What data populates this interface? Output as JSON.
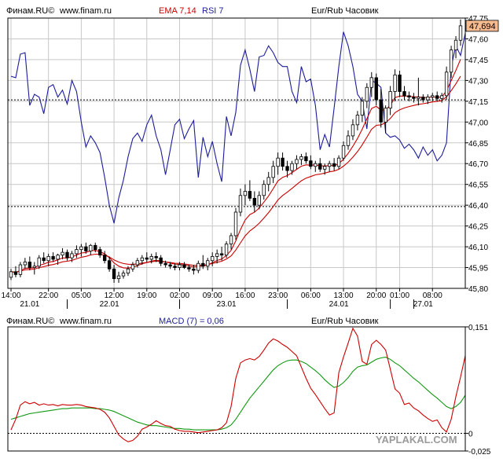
{
  "colors": {
    "background": "#ffffff",
    "frame": "#000000",
    "grid": "#c8c8c8",
    "candle": "#000000",
    "ema": "#cc0000",
    "rsi": "#1c1c9c",
    "macd_line": "#cc0000",
    "signal_line": "#119911",
    "last_price_box": "#f6bb8e",
    "watermark": "#9a9a9a"
  },
  "watermark": "YAPLAKAL.COM",
  "chart_data": [
    {
      "type": "candlestick",
      "header": {
        "source": "Финам.RU©",
        "site": "www.finam.ru",
        "ema_label": "EMA 7,14",
        "rsi_label": "RSI 7",
        "instrument": "Eur/Rub Часовик"
      },
      "ylim": [
        45.8,
        47.75
      ],
      "y_ticks": [
        "47,75",
        "47,60",
        "47,45",
        "47,30",
        "47,15",
        "47,00",
        "46,85",
        "46,70",
        "46,55",
        "46,40",
        "46,25",
        "46,10",
        "45,95",
        "45,80"
      ],
      "last_price": 47.694,
      "last_price_label": "47,694",
      "dotted_levels": [
        47.16,
        46.39
      ],
      "x_time_labels": [
        {
          "label": "14:00",
          "bar": 0
        },
        {
          "label": "22:00",
          "bar": 8
        },
        {
          "label": "05:00",
          "bar": 15
        },
        {
          "label": "12:00",
          "bar": 22
        },
        {
          "label": "19:00",
          "bar": 29
        },
        {
          "label": "02:00",
          "bar": 36
        },
        {
          "label": "09:00",
          "bar": 43
        },
        {
          "label": "16:00",
          "bar": 50
        },
        {
          "label": "23:00",
          "bar": 57
        },
        {
          "label": "06:00",
          "bar": 64
        },
        {
          "label": "13:00",
          "bar": 71
        },
        {
          "label": "20:00",
          "bar": 78
        },
        {
          "label": "01:00",
          "bar": 83
        },
        {
          "label": "08:00",
          "bar": 90
        }
      ],
      "x_date_labels": [
        {
          "label": "21.01",
          "bar": 4
        },
        {
          "label": "22.01",
          "bar": 21
        },
        {
          "label": "23.01",
          "bar": 46
        },
        {
          "label": "24.01",
          "bar": 70
        },
        {
          "label": "27.01",
          "bar": 88
        }
      ],
      "day_separators": [
        12,
        36,
        59,
        81,
        86
      ],
      "candles": [
        [
          45.88,
          45.94,
          45.86,
          45.92
        ],
        [
          45.92,
          45.96,
          45.88,
          45.9
        ],
        [
          45.9,
          45.99,
          45.88,
          45.97
        ],
        [
          45.97,
          46.02,
          45.94,
          45.99
        ],
        [
          45.99,
          46.03,
          45.93,
          45.95
        ],
        [
          45.95,
          45.99,
          45.9,
          45.96
        ],
        [
          45.96,
          46.04,
          45.94,
          46.02
        ],
        [
          46.02,
          46.06,
          45.98,
          46.0
        ],
        [
          46.0,
          46.05,
          45.96,
          46.03
        ],
        [
          46.03,
          46.06,
          45.99,
          46.01
        ],
        [
          46.01,
          46.05,
          45.97,
          46.04
        ],
        [
          46.04,
          46.09,
          46.01,
          46.06
        ],
        [
          46.06,
          46.08,
          46.0,
          46.02
        ],
        [
          46.02,
          46.07,
          45.99,
          46.05
        ],
        [
          46.05,
          46.11,
          46.02,
          46.08
        ],
        [
          46.08,
          46.12,
          46.03,
          46.1
        ],
        [
          46.1,
          46.13,
          46.05,
          46.07
        ],
        [
          46.07,
          46.12,
          46.04,
          46.11
        ],
        [
          46.11,
          46.13,
          46.06,
          46.08
        ],
        [
          46.08,
          46.1,
          46.02,
          46.04
        ],
        [
          46.04,
          46.07,
          45.98,
          46.0
        ],
        [
          46.0,
          46.03,
          45.92,
          45.94
        ],
        [
          45.94,
          45.97,
          45.84,
          45.87
        ],
        [
          45.87,
          45.92,
          45.84,
          45.89
        ],
        [
          45.89,
          45.93,
          45.87,
          45.91
        ],
        [
          45.91,
          45.96,
          45.89,
          45.94
        ],
        [
          45.94,
          45.99,
          45.92,
          45.97
        ],
        [
          45.97,
          46.02,
          45.95,
          46.0
        ],
        [
          46.0,
          46.04,
          45.97,
          46.02
        ],
        [
          46.02,
          46.06,
          45.99,
          46.01
        ],
        [
          46.01,
          46.05,
          45.98,
          46.03
        ],
        [
          46.03,
          46.06,
          45.99,
          46.02
        ],
        [
          46.02,
          46.04,
          45.96,
          45.98
        ],
        [
          45.98,
          46.0,
          45.95,
          45.97
        ],
        [
          45.97,
          45.99,
          45.94,
          45.96
        ],
        [
          45.96,
          45.98,
          45.93,
          45.95
        ],
        [
          45.95,
          45.99,
          45.93,
          45.97
        ],
        [
          45.97,
          45.99,
          45.94,
          45.95
        ],
        [
          45.95,
          45.97,
          45.92,
          45.94
        ],
        [
          45.94,
          45.97,
          45.9,
          45.93
        ],
        [
          45.93,
          46.0,
          45.91,
          45.98
        ],
        [
          45.98,
          46.04,
          45.94,
          45.96
        ],
        [
          45.96,
          46.02,
          45.93,
          46.0
        ],
        [
          46.0,
          46.06,
          45.96,
          46.03
        ],
        [
          46.03,
          46.08,
          45.98,
          46.05
        ],
        [
          46.05,
          46.1,
          46.0,
          46.04
        ],
        [
          46.04,
          46.14,
          46.02,
          46.12
        ],
        [
          46.12,
          46.2,
          46.08,
          46.18
        ],
        [
          46.18,
          46.38,
          46.15,
          46.35
        ],
        [
          46.35,
          46.52,
          46.32,
          46.47
        ],
        [
          46.47,
          46.55,
          46.4,
          46.5
        ],
        [
          46.5,
          46.58,
          46.43,
          46.45
        ],
        [
          46.45,
          46.5,
          46.35,
          46.4
        ],
        [
          46.4,
          46.5,
          46.37,
          46.47
        ],
        [
          46.47,
          46.58,
          46.44,
          46.55
        ],
        [
          46.55,
          46.64,
          46.5,
          46.6
        ],
        [
          46.6,
          46.72,
          46.56,
          46.68
        ],
        [
          46.68,
          46.78,
          46.62,
          46.74
        ],
        [
          46.74,
          46.78,
          46.65,
          46.68
        ],
        [
          46.68,
          46.72,
          46.6,
          46.65
        ],
        [
          46.65,
          46.72,
          46.62,
          46.7
        ],
        [
          46.7,
          46.76,
          46.66,
          46.73
        ],
        [
          46.73,
          46.77,
          46.69,
          46.75
        ],
        [
          46.75,
          46.78,
          46.7,
          46.72
        ],
        [
          46.72,
          46.76,
          46.66,
          46.68
        ],
        [
          46.68,
          46.72,
          46.64,
          46.7
        ],
        [
          46.7,
          46.74,
          46.64,
          46.66
        ],
        [
          46.66,
          46.7,
          46.62,
          46.68
        ],
        [
          46.68,
          46.72,
          46.64,
          46.7
        ],
        [
          46.7,
          46.74,
          46.65,
          46.68
        ],
        [
          46.68,
          46.76,
          46.66,
          46.74
        ],
        [
          46.74,
          46.86,
          46.72,
          46.83
        ],
        [
          46.83,
          46.94,
          46.8,
          46.9
        ],
        [
          46.9,
          47.02,
          46.87,
          46.98
        ],
        [
          46.98,
          47.08,
          46.94,
          47.05
        ],
        [
          47.05,
          47.18,
          47.0,
          47.15
        ],
        [
          47.15,
          47.28,
          47.1,
          47.25
        ],
        [
          47.25,
          47.36,
          47.18,
          47.32
        ],
        [
          47.32,
          47.35,
          47.12,
          47.16
        ],
        [
          47.16,
          47.24,
          46.96,
          47.0
        ],
        [
          47.0,
          47.12,
          46.92,
          47.1
        ],
        [
          47.1,
          47.26,
          47.05,
          47.22
        ],
        [
          47.22,
          47.38,
          47.15,
          47.34
        ],
        [
          47.34,
          47.37,
          47.18,
          47.22
        ],
        [
          47.22,
          47.26,
          47.16,
          47.19
        ],
        [
          47.19,
          47.22,
          47.15,
          47.18
        ],
        [
          47.18,
          47.21,
          47.14,
          47.17
        ],
        [
          47.17,
          47.32,
          47.12,
          47.18
        ],
        [
          47.18,
          47.2,
          47.14,
          47.16
        ],
        [
          47.16,
          47.2,
          47.13,
          47.18
        ],
        [
          47.18,
          47.21,
          47.15,
          47.19
        ],
        [
          47.19,
          47.22,
          47.15,
          47.17
        ],
        [
          47.17,
          47.21,
          47.14,
          47.19
        ],
        [
          47.19,
          47.4,
          47.16,
          47.36
        ],
        [
          47.36,
          47.55,
          47.32,
          47.52
        ],
        [
          47.52,
          47.62,
          47.46,
          47.59
        ],
        [
          47.59,
          47.74,
          47.55,
          47.694
        ]
      ],
      "rsi_values": [
        47.33,
        47.32,
        47.49,
        47.5,
        47.12,
        47.2,
        47.18,
        47.06,
        47.25,
        47.27,
        47.18,
        47.23,
        47.13,
        47.3,
        47.22,
        47.0,
        46.82,
        46.9,
        46.85,
        46.78,
        46.6,
        46.4,
        46.27,
        46.45,
        46.58,
        46.75,
        46.88,
        46.92,
        46.86,
        46.98,
        47.05,
        46.9,
        46.8,
        46.62,
        46.8,
        46.98,
        47.02,
        46.88,
        46.95,
        47.01,
        46.6,
        46.89,
        46.75,
        46.86,
        46.7,
        46.57,
        47.04,
        46.9,
        47.07,
        47.41,
        47.52,
        47.38,
        47.22,
        47.47,
        47.48,
        47.55,
        47.5,
        47.43,
        47.4,
        47.4,
        47.22,
        47.14,
        47.4,
        47.29,
        47.31,
        47.12,
        46.8,
        46.91,
        46.82,
        47.1,
        47.4,
        47.65,
        47.55,
        47.4,
        47.2,
        47.15,
        46.95,
        47.3,
        47.28,
        47.25,
        46.92,
        46.89,
        46.9,
        46.87,
        46.81,
        46.84,
        46.8,
        46.74,
        46.82,
        46.76,
        46.8,
        46.72,
        46.76,
        46.85,
        47.4,
        47.55,
        47.48,
        47.64
      ]
    },
    {
      "type": "line",
      "header": {
        "source": "Финам.RU©",
        "site": "www.finam.ru",
        "macd_label": "MACD (7) = 0,06",
        "instrument": "Eur/Rub Часовик"
      },
      "ylim": [
        -0.025,
        0.151
      ],
      "y_ticks": [
        "0,151",
        "0",
        "-0,025"
      ],
      "zero_line": 0,
      "series": [
        {
          "key": "macd",
          "values": [
            0.005,
            0.02,
            0.04,
            0.045,
            0.042,
            0.044,
            0.04,
            0.042,
            0.04,
            0.041,
            0.039,
            0.041,
            0.04,
            0.04,
            0.041,
            0.04,
            0.038,
            0.037,
            0.036,
            0.034,
            0.03,
            0.022,
            0.01,
            -0.002,
            -0.008,
            -0.012,
            -0.01,
            -0.004,
            0.006,
            0.009,
            0.013,
            0.018,
            0.014,
            0.011,
            0.01,
            0.006,
            0.004,
            0.003,
            0.003,
            0.002,
            0.001,
            0.002,
            0.003,
            0.004,
            0.005,
            0.008,
            0.015,
            0.038,
            0.078,
            0.1,
            0.104,
            0.106,
            0.104,
            0.109,
            0.118,
            0.128,
            0.134,
            0.131,
            0.126,
            0.122,
            0.116,
            0.11,
            0.094,
            0.078,
            0.064,
            0.055,
            0.045,
            0.035,
            0.026,
            0.029,
            0.086,
            0.108,
            0.128,
            0.149,
            0.138,
            0.102,
            0.098,
            0.126,
            0.132,
            0.126,
            0.118,
            0.091,
            0.063,
            0.057,
            0.041,
            0.043,
            0.036,
            0.032,
            0.026,
            0.021,
            0.017,
            0.019,
            0.008,
            0.002,
            0.02,
            0.052,
            0.08,
            0.11
          ]
        },
        {
          "key": "signal",
          "values": [
            0.02,
            0.022,
            0.024,
            0.026,
            0.028,
            0.029,
            0.03,
            0.031,
            0.032,
            0.033,
            0.034,
            0.035,
            0.035,
            0.036,
            0.036,
            0.036,
            0.036,
            0.036,
            0.035,
            0.035,
            0.034,
            0.033,
            0.031,
            0.028,
            0.025,
            0.022,
            0.019,
            0.016,
            0.014,
            0.012,
            0.011,
            0.011,
            0.01,
            0.009,
            0.008,
            0.007,
            0.007,
            0.006,
            0.006,
            0.005,
            0.005,
            0.005,
            0.005,
            0.005,
            0.005,
            0.006,
            0.008,
            0.012,
            0.02,
            0.03,
            0.04,
            0.05,
            0.058,
            0.066,
            0.074,
            0.082,
            0.09,
            0.096,
            0.1,
            0.103,
            0.104,
            0.104,
            0.102,
            0.099,
            0.094,
            0.089,
            0.083,
            0.076,
            0.07,
            0.065,
            0.067,
            0.072,
            0.079,
            0.088,
            0.094,
            0.096,
            0.097,
            0.101,
            0.105,
            0.107,
            0.108,
            0.105,
            0.1,
            0.096,
            0.09,
            0.084,
            0.078,
            0.073,
            0.067,
            0.061,
            0.055,
            0.05,
            0.044,
            0.038,
            0.035,
            0.038,
            0.044,
            0.054
          ]
        }
      ]
    }
  ]
}
